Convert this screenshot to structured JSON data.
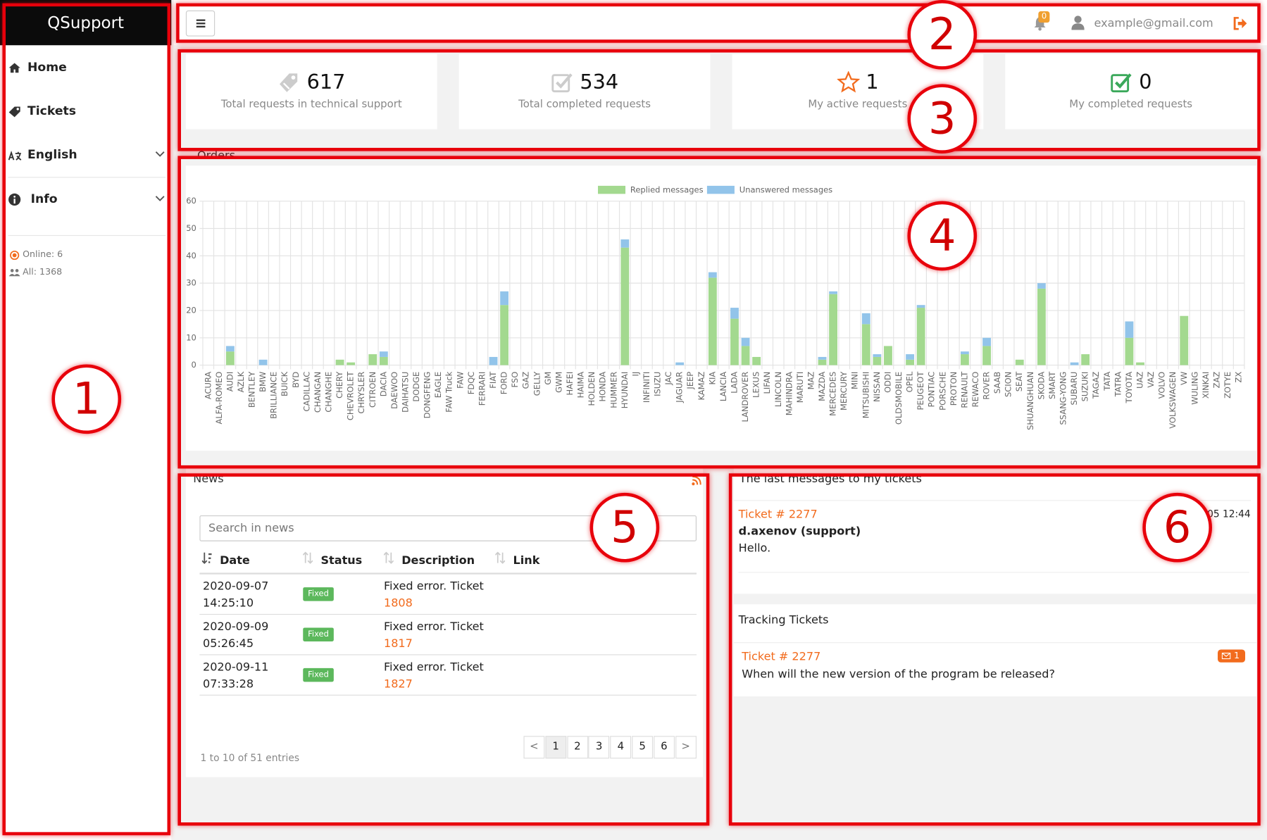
{
  "sidebar": {
    "brand": "QSupport",
    "menu": [
      "Home",
      "Tickets",
      "English",
      "Info"
    ],
    "online": "Online: 6",
    "all": "All: 1368"
  },
  "topbar": {
    "notifications": "0",
    "user": "example@gmail.com"
  },
  "stats": [
    {
      "value": 617,
      "label": "Total requests in technical support"
    },
    {
      "value": 534,
      "label": "Total completed requests"
    },
    {
      "value": 1,
      "label": "My active requests"
    },
    {
      "value": 0,
      "label": "My completed requests"
    }
  ],
  "chart_data": {
    "type": "bar",
    "stacked": true,
    "title": "Orders",
    "legend": "top",
    "grid": true,
    "categories": [
      "ACURA",
      "ALFA-ROMEO",
      "AUDI",
      "AZLK",
      "BENTLEY",
      "BMW",
      "BRILLIANCE",
      "BUICK",
      "BYD",
      "CADILLAC",
      "CHANGAN",
      "CHANGHE",
      "CHERY",
      "CHEVROLET",
      "CHRYSLER",
      "CITROEN",
      "DACIA",
      "DAEWOO",
      "DAIHATSU",
      "DODGE",
      "DONGFENG",
      "EAGLE",
      "FAW Truck",
      "FAW",
      "FDQC",
      "FERRARI",
      "FIAT",
      "FORD",
      "FSO",
      "GAZ",
      "GELLY",
      "GM",
      "GWM",
      "HAFEI",
      "HAIMA",
      "HOLDEN",
      "HONDA",
      "HUMMER",
      "HYUNDAI",
      "IJ",
      "INFINITI",
      "ISUZU",
      "JAC",
      "JAGUAR",
      "JEEP",
      "KAMAZ",
      "KIA",
      "LANCIA",
      "LADA",
      "LANDROVER",
      "LEXUS",
      "LIFAN",
      "LINCOLN",
      "MAHINDRA",
      "MARUTI",
      "MAZ",
      "MAZDA",
      "MERCEDES",
      "MERCURY",
      "MINI",
      "MITSUBISHI",
      "NISSAN",
      "ODDI",
      "OLDSMOBILE",
      "OPEL",
      "PEUGEOT",
      "PONTIAC",
      "PORSCHE",
      "PROTON",
      "RENAULT",
      "REWACO",
      "ROVER",
      "SAAB",
      "SCION",
      "SEAT",
      "SHUANGHUAN",
      "SKODA",
      "SMART",
      "SSANG-YONG",
      "SUBARU",
      "SUZUKI",
      "TAGAZ",
      "TATA",
      "TATRA",
      "TOYOTA",
      "UAZ",
      "VAZ",
      "VOLVO",
      "VOLKSWAGEN",
      "VW",
      "WULING",
      "XINKAI",
      "ZAZ",
      "ZOTYE",
      "ZX"
    ],
    "series": [
      {
        "name": "Replied messages",
        "color": "#a3d98f",
        "values": [
          0,
          0,
          5,
          0,
          0,
          0,
          0,
          0,
          0,
          0,
          0,
          0,
          2,
          1,
          0,
          4,
          3,
          0,
          0,
          0,
          0,
          0,
          0,
          0,
          0,
          0,
          0,
          22,
          0,
          0,
          0,
          0,
          0,
          0,
          0,
          0,
          0,
          0,
          43,
          0,
          0,
          0,
          0,
          0,
          0,
          0,
          32,
          0,
          17,
          7,
          3,
          0,
          0,
          0,
          0,
          0,
          2,
          26,
          0,
          0,
          15,
          3,
          7,
          0,
          2,
          21,
          0,
          0,
          0,
          4,
          0,
          7,
          0,
          0,
          2,
          0,
          28,
          0,
          0,
          0,
          4,
          0,
          0,
          0,
          10,
          1,
          0,
          0,
          0,
          18,
          0,
          0,
          0,
          0,
          0
        ]
      },
      {
        "name": "Unanswered messages",
        "color": "#92c4ea",
        "values": [
          0,
          0,
          2,
          0,
          0,
          2,
          0,
          0,
          0,
          0,
          0,
          0,
          0,
          0,
          0,
          0,
          2,
          0,
          0,
          0,
          0,
          0,
          0,
          0,
          0,
          0,
          3,
          5,
          0,
          0,
          0,
          0,
          0,
          0,
          0,
          0,
          0,
          0,
          3,
          0,
          0,
          0,
          0,
          1,
          0,
          0,
          2,
          0,
          4,
          3,
          0,
          0,
          0,
          0,
          0,
          0,
          1,
          1,
          0,
          0,
          4,
          1,
          0,
          0,
          2,
          1,
          0,
          0,
          0,
          1,
          0,
          3,
          0,
          0,
          0,
          0,
          2,
          0,
          0,
          1,
          0,
          0,
          0,
          0,
          6,
          0,
          0,
          0,
          0,
          0,
          0,
          0,
          0,
          0,
          0
        ]
      }
    ],
    "ylim": [
      0,
      60
    ],
    "yticks": [
      0,
      10,
      20,
      30,
      40,
      50,
      60
    ]
  },
  "news": {
    "title": "News",
    "search": "Search in news",
    "columns": [
      "Date",
      "Status",
      "Description",
      "Link"
    ],
    "rows": [
      {
        "date": "2020-09-07 14:25:10",
        "status": "Fixed",
        "description": "Fixed error. Ticket",
        "ticket": "1808"
      },
      {
        "date": "2020-09-09 05:26:45",
        "status": "Fixed",
        "description": "Fixed error. Ticket",
        "ticket": "1817"
      },
      {
        "date": "2020-09-11 07:33:28",
        "status": "Fixed",
        "description": "Fixed error. Ticket",
        "ticket": "1827"
      }
    ],
    "info": "1 to 10 of 51 entries",
    "pages": [
      "<",
      "1",
      "2",
      "3",
      "4",
      "5",
      "6",
      ">"
    ]
  },
  "messages": {
    "title": "The last messages to my tickets",
    "ticket": "Ticket # 2277",
    "time": "05 12:44",
    "author": "d.axenov (support)",
    "text": "Hello."
  },
  "tracking": {
    "title": "Tracking Tickets",
    "ticket": "Ticket # 2277",
    "count": "1",
    "text": "When will the new version of the program be released?"
  },
  "annotations": [
    "1",
    "2",
    "3",
    "4",
    "5",
    "6"
  ]
}
